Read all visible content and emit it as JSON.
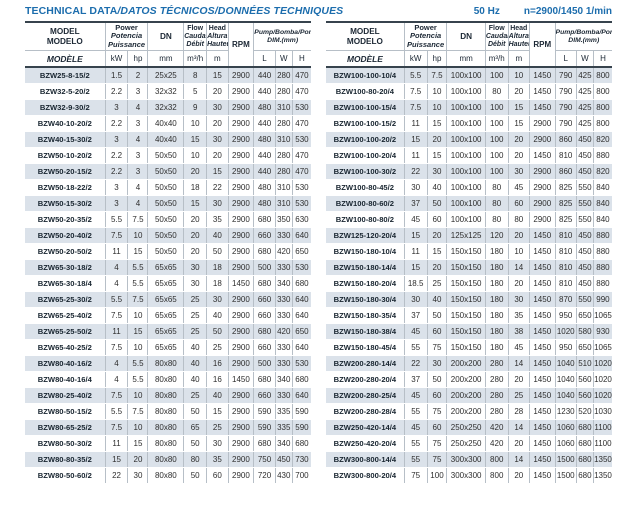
{
  "page": {
    "title_main": "TECHNICAL DATA",
    "title_rest": "/DATOS TÉCNICOS/DONNÉES TECHNIQUES",
    "freq": "50 Hz",
    "speed": "n=2900/1450 1/min"
  },
  "colors": {
    "accent_blue": "#1c6dad",
    "stripe": "#dbe2ea",
    "border_dark": "#37434d",
    "border_light": "#b7bfc7"
  },
  "header": {
    "model": [
      "MODEL",
      "MODELO",
      "MODÈLE"
    ],
    "power": [
      "Power",
      "Potencia",
      "Puissance"
    ],
    "dn": "DN",
    "flow": [
      "Flow",
      "Caudal",
      "Débit"
    ],
    "head": [
      "Head",
      "Altura",
      "Hauteur"
    ],
    "rpm": "RPM",
    "dim": [
      "Pump/Bomba/Pompe",
      "DIM.(mm)"
    ],
    "units": {
      "kw": "kW",
      "hp": "hp",
      "mm": "mm",
      "flow": "m³/h",
      "head": "m",
      "l": "L",
      "w": "W",
      "h": "H"
    }
  },
  "tables": {
    "left": {
      "rows": [
        [
          "BZW25-8-15/2",
          "1.5",
          "2",
          "25x25",
          "8",
          "15",
          "2900",
          "440",
          "280",
          "470"
        ],
        [
          "BZW32-5-20/2",
          "2.2",
          "3",
          "32x32",
          "5",
          "20",
          "2900",
          "440",
          "280",
          "470"
        ],
        [
          "BZW32-9-30/2",
          "3",
          "4",
          "32x32",
          "9",
          "30",
          "2900",
          "480",
          "310",
          "530"
        ],
        [
          "BZW40-10-20/2",
          "2.2",
          "3",
          "40x40",
          "10",
          "20",
          "2900",
          "440",
          "280",
          "470"
        ],
        [
          "BZW40-15-30/2",
          "3",
          "4",
          "40x40",
          "15",
          "30",
          "2900",
          "480",
          "310",
          "530"
        ],
        [
          "BZW50-10-20/2",
          "2.2",
          "3",
          "50x50",
          "10",
          "20",
          "2900",
          "440",
          "280",
          "470"
        ],
        [
          "BZW50-20-15/2",
          "2.2",
          "3",
          "50x50",
          "20",
          "15",
          "2900",
          "440",
          "280",
          "470"
        ],
        [
          "BZW50-18-22/2",
          "3",
          "4",
          "50x50",
          "18",
          "22",
          "2900",
          "480",
          "310",
          "530"
        ],
        [
          "BZW50-15-30/2",
          "3",
          "4",
          "50x50",
          "15",
          "30",
          "2900",
          "480",
          "310",
          "530"
        ],
        [
          "BZW50-20-35/2",
          "5.5",
          "7.5",
          "50x50",
          "20",
          "35",
          "2900",
          "680",
          "350",
          "630"
        ],
        [
          "BZW50-20-40/2",
          "7.5",
          "10",
          "50x50",
          "20",
          "40",
          "2900",
          "660",
          "330",
          "640"
        ],
        [
          "BZW50-20-50/2",
          "11",
          "15",
          "50x50",
          "20",
          "50",
          "2900",
          "680",
          "420",
          "650"
        ],
        [
          "BZW65-30-18/2",
          "4",
          "5.5",
          "65x65",
          "30",
          "18",
          "2900",
          "500",
          "330",
          "530"
        ],
        [
          "BZW65-30-18/4",
          "4",
          "5.5",
          "65x65",
          "30",
          "18",
          "1450",
          "680",
          "340",
          "680"
        ],
        [
          "BZW65-25-30/2",
          "5.5",
          "7.5",
          "65x65",
          "25",
          "30",
          "2900",
          "660",
          "330",
          "640"
        ],
        [
          "BZW65-25-40/2",
          "7.5",
          "10",
          "65x65",
          "25",
          "40",
          "2900",
          "660",
          "330",
          "640"
        ],
        [
          "BZW65-25-50/2",
          "11",
          "15",
          "65x65",
          "25",
          "50",
          "2900",
          "680",
          "420",
          "650"
        ],
        [
          "BZW65-40-25/2",
          "7.5",
          "10",
          "65x65",
          "40",
          "25",
          "2900",
          "660",
          "330",
          "640"
        ],
        [
          "BZW80-40-16/2",
          "4",
          "5.5",
          "80x80",
          "40",
          "16",
          "2900",
          "500",
          "330",
          "530"
        ],
        [
          "BZW80-40-16/4",
          "4",
          "5.5",
          "80x80",
          "40",
          "16",
          "1450",
          "680",
          "340",
          "680"
        ],
        [
          "BZW80-25-40/2",
          "7.5",
          "10",
          "80x80",
          "25",
          "40",
          "2900",
          "660",
          "330",
          "640"
        ],
        [
          "BZW80-50-15/2",
          "5.5",
          "7.5",
          "80x80",
          "50",
          "15",
          "2900",
          "590",
          "335",
          "590"
        ],
        [
          "BZW80-65-25/2",
          "7.5",
          "10",
          "80x80",
          "65",
          "25",
          "2900",
          "590",
          "335",
          "590"
        ],
        [
          "BZW80-50-30/2",
          "11",
          "15",
          "80x80",
          "50",
          "30",
          "2900",
          "680",
          "340",
          "680"
        ],
        [
          "BZW80-80-35/2",
          "15",
          "20",
          "80x80",
          "80",
          "35",
          "2900",
          "750",
          "450",
          "730"
        ],
        [
          "BZW80-50-60/2",
          "22",
          "30",
          "80x80",
          "50",
          "60",
          "2900",
          "720",
          "430",
          "700"
        ]
      ]
    },
    "right": {
      "rows": [
        [
          "BZW100-100-10/4",
          "5.5",
          "7.5",
          "100x100",
          "100",
          "10",
          "1450",
          "790",
          "425",
          "800"
        ],
        [
          "BZW100-80-20/4",
          "7.5",
          "10",
          "100x100",
          "80",
          "20",
          "1450",
          "790",
          "425",
          "800"
        ],
        [
          "BZW100-100-15/4",
          "7.5",
          "10",
          "100x100",
          "100",
          "15",
          "1450",
          "790",
          "425",
          "800"
        ],
        [
          "BZW100-100-15/2",
          "11",
          "15",
          "100x100",
          "100",
          "15",
          "2900",
          "790",
          "425",
          "800"
        ],
        [
          "BZW100-100-20/2",
          "15",
          "20",
          "100x100",
          "100",
          "20",
          "2900",
          "860",
          "450",
          "820"
        ],
        [
          "BZW100-100-20/4",
          "11",
          "15",
          "100x100",
          "100",
          "20",
          "1450",
          "810",
          "450",
          "880"
        ],
        [
          "BZW100-100-30/2",
          "22",
          "30",
          "100x100",
          "100",
          "30",
          "2900",
          "860",
          "450",
          "820"
        ],
        [
          "BZW100-80-45/2",
          "30",
          "40",
          "100x100",
          "80",
          "45",
          "2900",
          "825",
          "550",
          "840"
        ],
        [
          "BZW100-80-60/2",
          "37",
          "50",
          "100x100",
          "80",
          "60",
          "2900",
          "825",
          "550",
          "840"
        ],
        [
          "BZW100-80-80/2",
          "45",
          "60",
          "100x100",
          "80",
          "80",
          "2900",
          "825",
          "550",
          "840"
        ],
        [
          "BZW125-120-20/4",
          "15",
          "20",
          "125x125",
          "120",
          "20",
          "1450",
          "810",
          "450",
          "880"
        ],
        [
          "BZW150-180-10/4",
          "11",
          "15",
          "150x150",
          "180",
          "10",
          "1450",
          "810",
          "450",
          "880"
        ],
        [
          "BZW150-180-14/4",
          "15",
          "20",
          "150x150",
          "180",
          "14",
          "1450",
          "810",
          "450",
          "880"
        ],
        [
          "BZW150-180-20/4",
          "18.5",
          "25",
          "150x150",
          "180",
          "20",
          "1450",
          "810",
          "450",
          "880"
        ],
        [
          "BZW150-180-30/4",
          "30",
          "40",
          "150x150",
          "180",
          "30",
          "1450",
          "870",
          "550",
          "990"
        ],
        [
          "BZW150-180-35/4",
          "37",
          "50",
          "150x150",
          "180",
          "35",
          "1450",
          "950",
          "650",
          "1065"
        ],
        [
          "BZW150-180-38/4",
          "45",
          "60",
          "150x150",
          "180",
          "38",
          "1450",
          "1020",
          "580",
          "930"
        ],
        [
          "BZW150-180-45/4",
          "55",
          "75",
          "150x150",
          "180",
          "45",
          "1450",
          "950",
          "650",
          "1065"
        ],
        [
          "BZW200-280-14/4",
          "22",
          "30",
          "200x200",
          "280",
          "14",
          "1450",
          "1040",
          "510",
          "1020"
        ],
        [
          "BZW200-280-20/4",
          "37",
          "50",
          "200x200",
          "280",
          "20",
          "1450",
          "1040",
          "560",
          "1020"
        ],
        [
          "BZW200-280-25/4",
          "45",
          "60",
          "200x200",
          "280",
          "25",
          "1450",
          "1040",
          "560",
          "1020"
        ],
        [
          "BZW200-280-28/4",
          "55",
          "75",
          "200x200",
          "280",
          "28",
          "1450",
          "1230",
          "520",
          "1030"
        ],
        [
          "BZW250-420-14/4",
          "45",
          "60",
          "250x250",
          "420",
          "14",
          "1450",
          "1060",
          "680",
          "1100"
        ],
        [
          "BZW250-420-20/4",
          "55",
          "75",
          "250x250",
          "420",
          "20",
          "1450",
          "1060",
          "680",
          "1100"
        ],
        [
          "BZW300-800-14/4",
          "55",
          "75",
          "300x300",
          "800",
          "14",
          "1450",
          "1500",
          "680",
          "1350"
        ],
        [
          "BZW300-800-20/4",
          "75",
          "100",
          "300x300",
          "800",
          "20",
          "1450",
          "1500",
          "680",
          "1350"
        ]
      ]
    }
  }
}
